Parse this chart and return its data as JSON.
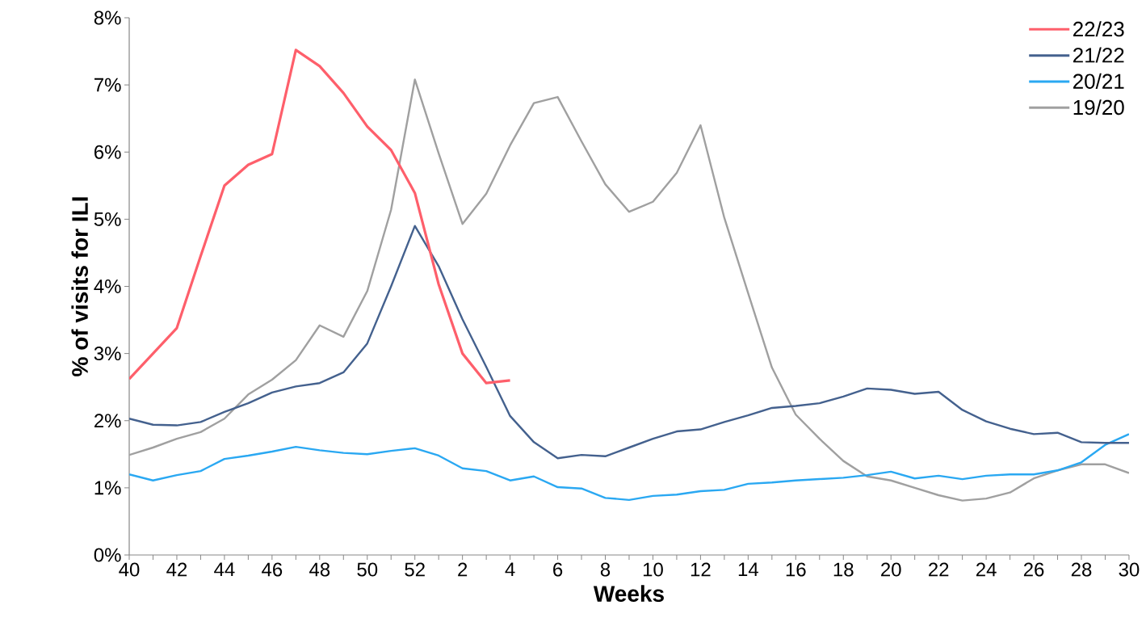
{
  "chart_data": {
    "type": "line",
    "xlabel": "Weeks",
    "ylabel": "% of visits for ILI",
    "categories": [
      "40",
      null,
      "42",
      null,
      "44",
      null,
      "46",
      null,
      "48",
      null,
      "50",
      null,
      "52",
      null,
      "2",
      null,
      "4",
      null,
      "6",
      null,
      "8",
      null,
      "10",
      null,
      "12",
      null,
      "14",
      null,
      "16",
      null,
      "18",
      null,
      "20",
      null,
      "22",
      null,
      "24",
      null,
      "26",
      null,
      "28",
      null,
      "30"
    ],
    "ylim": [
      0,
      8
    ],
    "yticks": [
      {
        "value": 0,
        "label": "0%"
      },
      {
        "value": 1,
        "label": "1%"
      },
      {
        "value": 2,
        "label": "2%"
      },
      {
        "value": 3,
        "label": "3%"
      },
      {
        "value": 4,
        "label": "4%"
      },
      {
        "value": 5,
        "label": "5%"
      },
      {
        "value": 6,
        "label": "6%"
      },
      {
        "value": 7,
        "label": "7%"
      },
      {
        "value": 8,
        "label": "8%"
      }
    ],
    "grid": false,
    "legend": "top right",
    "marker": "none",
    "line_style": "solid",
    "series": [
      {
        "name": "22/23",
        "color": "#fe5f6b",
        "values": [
          2.62,
          3.0,
          3.38,
          4.45,
          5.5,
          5.81,
          5.97,
          7.52,
          7.28,
          6.88,
          6.38,
          6.03,
          5.39,
          4.03,
          3.0,
          2.56,
          2.6,
          null,
          null,
          null,
          null,
          null,
          null,
          null,
          null,
          null,
          null,
          null,
          null,
          null,
          null,
          null,
          null,
          null,
          null,
          null,
          null,
          null,
          null,
          null,
          null,
          null,
          null
        ]
      },
      {
        "name": "21/22",
        "color": "#44618e",
        "values": [
          2.03,
          1.94,
          1.93,
          1.98,
          2.13,
          2.26,
          2.42,
          2.51,
          2.56,
          2.72,
          3.15,
          4.0,
          4.9,
          4.3,
          3.51,
          2.8,
          2.07,
          1.68,
          1.44,
          1.49,
          1.47,
          1.6,
          1.73,
          1.84,
          1.87,
          1.98,
          2.08,
          2.19,
          2.22,
          2.26,
          2.36,
          2.48,
          2.46,
          2.4,
          2.43,
          2.16,
          1.99,
          1.88,
          1.8,
          1.82,
          1.68,
          1.67,
          1.67
        ]
      },
      {
        "name": "20/21",
        "color": "#2aa8f2",
        "values": [
          1.2,
          1.11,
          1.19,
          1.25,
          1.43,
          1.48,
          1.54,
          1.61,
          1.56,
          1.52,
          1.5,
          1.55,
          1.59,
          1.48,
          1.29,
          1.25,
          1.11,
          1.17,
          1.01,
          0.99,
          0.85,
          0.82,
          0.88,
          0.9,
          0.95,
          0.97,
          1.06,
          1.08,
          1.11,
          1.13,
          1.15,
          1.19,
          1.24,
          1.14,
          1.18,
          1.13,
          1.18,
          1.2,
          1.2,
          1.26,
          1.38,
          1.64,
          1.8
        ]
      },
      {
        "name": "19/20",
        "color": "#a0a0a0",
        "values": [
          1.49,
          1.6,
          1.73,
          1.83,
          2.03,
          2.39,
          2.61,
          2.9,
          3.42,
          3.25,
          3.93,
          5.14,
          7.08,
          5.98,
          4.93,
          5.38,
          6.1,
          6.73,
          6.82,
          6.16,
          5.52,
          5.11,
          5.26,
          5.69,
          6.4,
          5.02,
          3.9,
          2.79,
          2.09,
          1.73,
          1.4,
          1.17,
          1.11,
          1.0,
          0.89,
          0.81,
          0.84,
          0.93,
          1.14,
          1.26,
          1.35,
          1.35,
          1.22
        ]
      }
    ]
  }
}
